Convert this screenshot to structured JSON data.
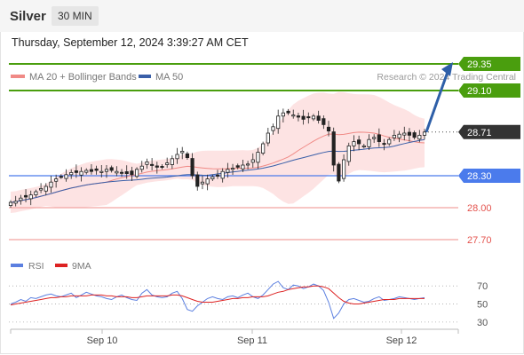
{
  "header": {
    "instrument": "Silver",
    "timeframe": "30 MIN",
    "datetime": "Thursday, September 12, 2024 3:39:27 AM CET"
  },
  "legend": {
    "ma20": "MA 20 + Bollinger Bands",
    "ma50": "MA 50",
    "credit": "Research © 2024 Trading Central",
    "rsi": "RSI",
    "rsi_ma": "9MA"
  },
  "colors": {
    "up_level": "#4a9e0e",
    "current": "#333333",
    "pivot": "#4b7bec",
    "down_level": "#e4544f",
    "ma20": "#f08a86",
    "ma50": "#3a5fa8",
    "band": "#fde0e0",
    "rsi": "#5b7fe0",
    "rsi_ma": "#dd2222",
    "arrow": "#2e5fa8"
  },
  "chart_data": [
    {
      "type": "candlestick",
      "x_ticks": [
        "Sep 10",
        "Sep 11",
        "Sep 12"
      ],
      "ylim": [
        27.55,
        29.45
      ],
      "levels": [
        {
          "label": "29.35",
          "value": 29.35,
          "kind": "resistance"
        },
        {
          "label": "29.10",
          "value": 29.1,
          "kind": "resistance"
        },
        {
          "label": "28.71",
          "value": 28.71,
          "kind": "current"
        },
        {
          "label": "28.30",
          "value": 28.3,
          "kind": "pivot"
        },
        {
          "label": "28.00",
          "value": 28.0,
          "kind": "support"
        },
        {
          "label": "27.70",
          "value": 27.7,
          "kind": "support"
        }
      ],
      "projection": {
        "from": 28.71,
        "to": 29.35
      },
      "close_series": [
        28.05,
        28.06,
        28.09,
        28.1,
        28.12,
        28.15,
        28.18,
        28.2,
        28.24,
        28.27,
        28.29,
        28.31,
        28.33,
        28.33,
        28.34,
        28.35,
        28.34,
        28.35,
        28.34,
        28.36,
        28.35,
        28.34,
        28.33,
        28.32,
        28.31,
        28.36,
        28.39,
        28.43,
        28.4,
        28.38,
        28.38,
        28.42,
        28.46,
        28.5,
        28.53,
        28.47,
        28.3,
        28.2,
        28.24,
        28.27,
        28.29,
        28.3,
        28.34,
        28.36,
        28.37,
        28.38,
        28.4,
        28.41,
        28.45,
        28.52,
        28.6,
        28.7,
        28.76,
        28.86,
        28.89,
        28.89,
        28.87,
        28.85,
        28.83,
        28.85,
        28.86,
        28.82,
        28.78,
        28.72,
        28.4,
        28.25,
        28.45,
        28.58,
        28.62,
        28.6,
        28.58,
        28.64,
        28.66,
        28.62,
        28.6,
        28.64,
        28.68,
        28.69,
        28.7,
        28.68,
        28.66,
        28.68,
        28.71
      ]
    },
    {
      "type": "line",
      "title": "RSI",
      "ylim": [
        25,
        80
      ],
      "y_ticks": [
        70,
        50,
        30
      ],
      "series": [
        {
          "name": "RSI",
          "values": [
            50,
            52,
            55,
            53,
            57,
            56,
            58,
            60,
            61,
            59,
            58,
            60,
            62,
            57,
            60,
            63,
            61,
            59,
            58,
            56,
            55,
            58,
            60,
            57,
            55,
            54,
            62,
            66,
            60,
            58,
            57,
            58,
            62,
            64,
            56,
            44,
            42,
            48,
            52,
            56,
            58,
            56,
            55,
            58,
            59,
            57,
            60,
            62,
            58,
            56,
            60,
            66,
            72,
            75,
            68,
            66,
            71,
            70,
            67,
            69,
            72,
            70,
            65,
            52,
            34,
            40,
            50,
            55,
            56,
            54,
            52,
            53,
            56,
            58,
            54,
            55,
            56,
            58,
            57,
            56,
            55,
            56,
            57
          ]
        },
        {
          "name": "9MA",
          "values": [
            49,
            50,
            51,
            52,
            53,
            54,
            55,
            56,
            57,
            57,
            58,
            58,
            59,
            59,
            59,
            59,
            60,
            60,
            60,
            59,
            59,
            58,
            58,
            58,
            57,
            57,
            58,
            59,
            59,
            59,
            59,
            59,
            60,
            60,
            59,
            57,
            55,
            53,
            52,
            52,
            52,
            53,
            54,
            55,
            56,
            56,
            57,
            57,
            58,
            58,
            58,
            59,
            61,
            63,
            64,
            66,
            67,
            68,
            69,
            69,
            70,
            70,
            69,
            67,
            62,
            57,
            53,
            51,
            50,
            50,
            51,
            52,
            53,
            54,
            55,
            55,
            55,
            56,
            56,
            56,
            56,
            56,
            56
          ]
        }
      ]
    }
  ]
}
